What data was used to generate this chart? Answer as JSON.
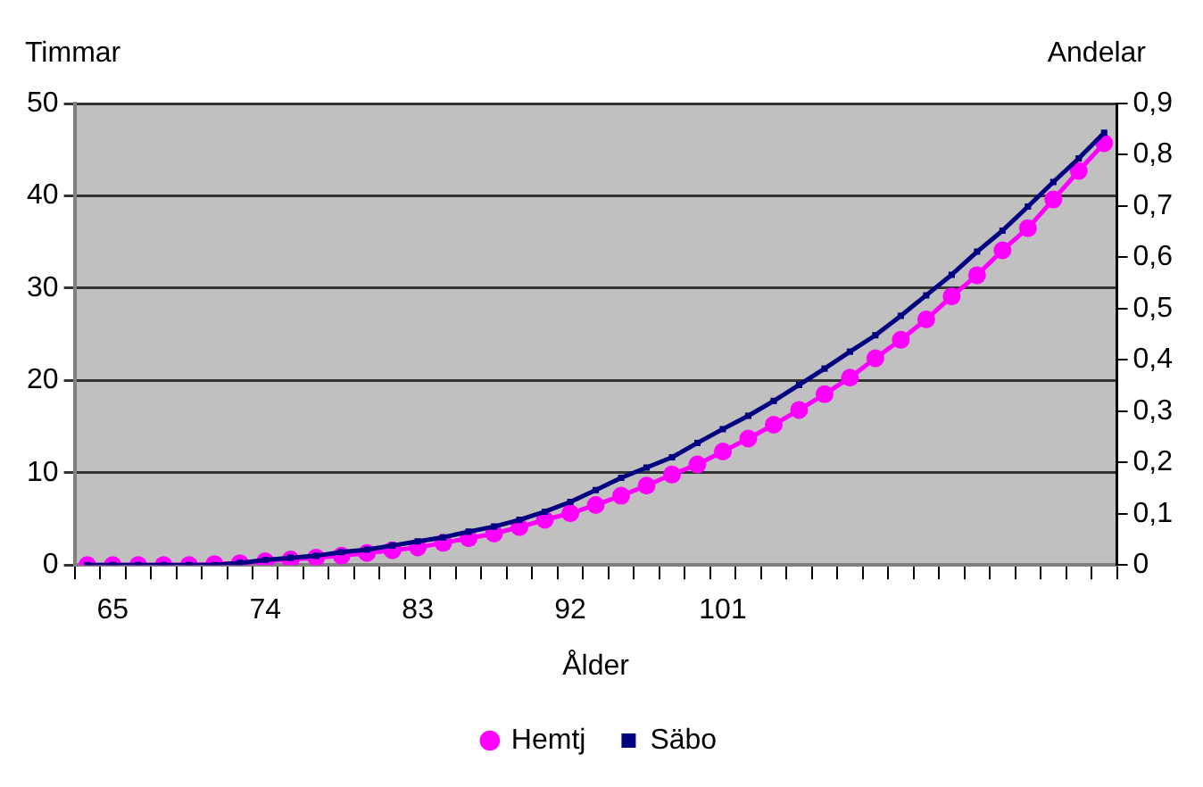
{
  "chart_data": {
    "type": "line",
    "xlabel": "Ålder",
    "ylabel": "Timmar",
    "y2label": "Andelar",
    "categories": [
      null,
      "65",
      null,
      null,
      null,
      null,
      null,
      "74",
      null,
      null,
      null,
      null,
      null,
      "83",
      null,
      null,
      null,
      null,
      null,
      "92",
      null,
      null,
      null,
      null,
      null,
      "101",
      null,
      null,
      null,
      null,
      null,
      null,
      null,
      null,
      null,
      null,
      null,
      null,
      null,
      null,
      null
    ],
    "series": [
      {
        "name": "Hemtj",
        "color": "#ff00ff",
        "marker": "circle",
        "values": [
          0,
          0,
          0,
          0,
          0,
          0.1,
          0.2,
          0.4,
          0.6,
          0.8,
          1.0,
          1.3,
          1.6,
          1.9,
          2.4,
          2.9,
          3.4,
          4.1,
          4.9,
          5.6,
          6.5,
          7.5,
          8.6,
          9.8,
          10.9,
          12.3,
          13.7,
          15.2,
          16.8,
          18.5,
          20.3,
          22.4,
          24.4,
          26.6,
          29.1,
          31.4,
          34.1,
          36.5,
          39.6,
          42.7,
          45.7
        ]
      },
      {
        "name": "Säbo",
        "color": "#000080",
        "marker": "square",
        "axis": "y2",
        "values": [
          0,
          0,
          0,
          0,
          0,
          0,
          0.004,
          0.01,
          0.014,
          0.018,
          0.025,
          0.03,
          0.038,
          0.046,
          0.054,
          0.065,
          0.075,
          0.088,
          0.104,
          0.123,
          0.146,
          0.17,
          0.19,
          0.21,
          0.238,
          0.265,
          0.291,
          0.32,
          0.351,
          0.383,
          0.416,
          0.448,
          0.486,
          0.526,
          0.566,
          0.611,
          0.652,
          0.699,
          0.747,
          0.793,
          0.843
        ]
      }
    ],
    "ylim": [
      0,
      50
    ],
    "yticks": [
      0,
      10,
      20,
      30,
      40,
      50
    ],
    "y2lim": [
      0,
      0.9
    ],
    "y2ticks": [
      0,
      {
        "value": 0.1,
        "label": "0,1"
      },
      {
        "value": 0.2,
        "label": "0,2"
      },
      {
        "value": 0.3,
        "label": "0,3"
      },
      {
        "value": 0.4,
        "label": "0,4"
      },
      {
        "value": 0.5,
        "label": "0,5"
      },
      {
        "value": 0.6,
        "label": "0,6"
      },
      {
        "value": 0.7,
        "label": "0,7"
      },
      {
        "value": 0.8,
        "label": "0,8"
      },
      {
        "value": 0.9,
        "label": "0,9"
      }
    ],
    "grid": "y",
    "legend": "bottom"
  }
}
